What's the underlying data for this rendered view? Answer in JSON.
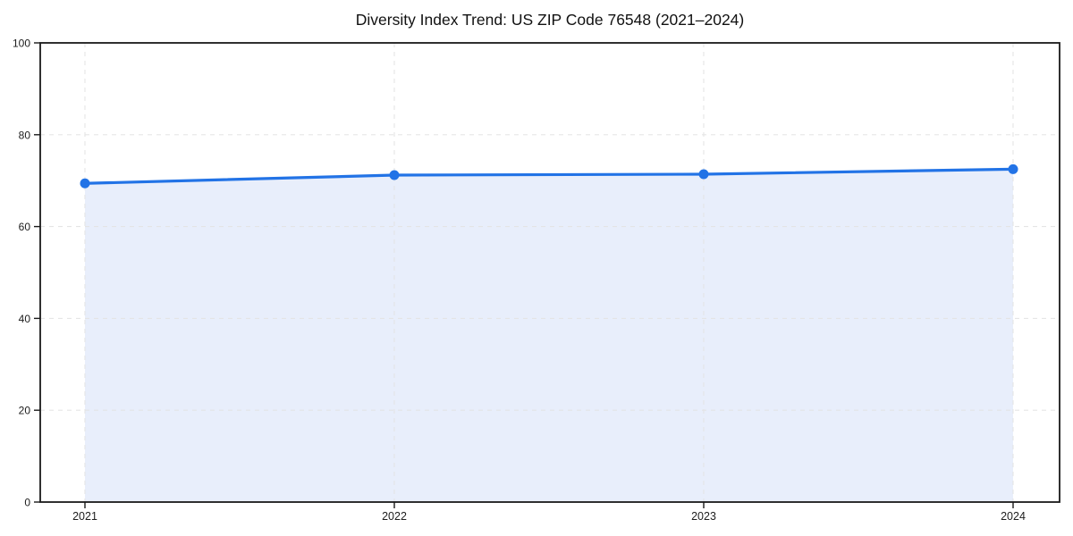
{
  "figure": {
    "background": "#ffffff"
  },
  "chart_data": {
    "type": "area",
    "title": "Diversity Index Trend: US ZIP Code 76548 (2021–2024)",
    "x": [
      2021,
      2022,
      2023,
      2024
    ],
    "x_labels": [
      "2021",
      "2022",
      "2023",
      "2024"
    ],
    "series": [
      {
        "name": "Diversity Index",
        "values": [
          69.4,
          71.2,
          71.4,
          72.5
        ]
      }
    ],
    "xlabel": "",
    "ylabel": "",
    "ylim": [
      0,
      100
    ],
    "yticks": [
      0,
      20,
      40,
      60,
      80,
      100
    ],
    "ytick_labels": [
      "0",
      "20",
      "40",
      "60",
      "80",
      "100"
    ],
    "grid": "dashed",
    "legend": "none",
    "marker": "circle",
    "colors": {
      "line": "#2273e6",
      "marker": "#2273e6",
      "fill": "#e8eefb",
      "grid": "#e3e3e3",
      "axis": "#1a1a1a",
      "tick_text": "#1c1c1c",
      "title_text": "#111111"
    }
  }
}
